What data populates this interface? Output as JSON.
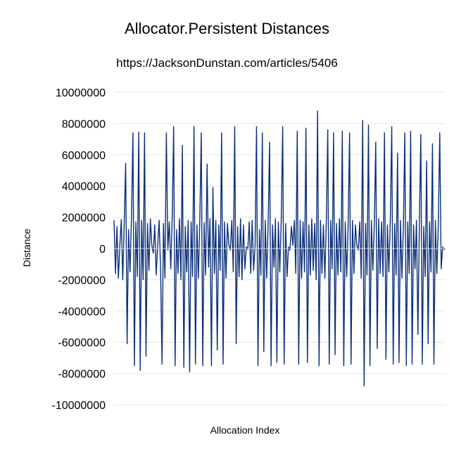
{
  "chart_data": {
    "type": "line",
    "title": "Allocator.Persistent Distances",
    "subtitle": "https://JacksonDunstan.com/articles/5406",
    "xlabel": "Allocation Index",
    "ylabel": "Distance",
    "ylim": [
      -10000000,
      10000000
    ],
    "yticks": [
      10000000,
      8000000,
      6000000,
      4000000,
      2000000,
      0,
      -2000000,
      -4000000,
      -6000000,
      -8000000,
      -10000000
    ],
    "grid": true,
    "legend": "none",
    "line_color": "#0b2f7a",
    "series": [
      {
        "values": [
          1800000,
          -1600000,
          1400000,
          -1900000,
          200000,
          1850000,
          -2000000,
          1600000,
          5450000,
          -6100000,
          1200000,
          -1500000,
          1900000,
          7400000,
          -7500000,
          1700000,
          -1800000,
          7450000,
          -7800000,
          1800000,
          -2000000,
          7400000,
          -6900000,
          1600000,
          -1400000,
          1900000,
          200000,
          -300000,
          1500000,
          -1700000,
          150000,
          1800000,
          -1200000,
          -7400000,
          1600000,
          -1900000,
          7400000,
          -100000,
          1700000,
          -1300000,
          1850000,
          7800000,
          -7500000,
          1200000,
          -1600000,
          1900000,
          -2000000,
          6600000,
          -7600000,
          1400000,
          -1500000,
          1800000,
          -7900000,
          1700000,
          -1800000,
          7800000,
          -7400000,
          1500000,
          -1900000,
          1800000,
          7400000,
          -7500000,
          1650000,
          -1700000,
          5400000,
          -1200000,
          1900000,
          -7500000,
          3900000,
          -1600000,
          1800000,
          -6500000,
          1500000,
          -1400000,
          7400000,
          -7400000,
          1700000,
          -1900000,
          1600000,
          200000,
          -100000,
          1800000,
          -1500000,
          7800000,
          -6100000,
          1400000,
          -1800000,
          1900000,
          -2000000,
          1500000,
          -1300000,
          100000,
          -50000,
          1700000,
          -1600000,
          1800000,
          -1400000,
          150000,
          7800000,
          -7500000,
          1200000,
          -1700000,
          7400000,
          -6600000,
          1800000,
          -1900000,
          1600000,
          6800000,
          -7500000,
          1500000,
          -1200000,
          1900000,
          -7300000,
          1700000,
          -1500000,
          1800000,
          7800000,
          -7400000,
          1600000,
          -1800000,
          100000,
          -100000,
          1400000,
          200000,
          1800000,
          -1600000,
          7500000,
          -7400000,
          1800000,
          -1900000,
          1700000,
          -1500000,
          7700000,
          -7300000,
          1500000,
          -1700000,
          1900000,
          -1400000,
          1600000,
          -2000000,
          8800000,
          -7500000,
          1800000,
          -1600000,
          1500000,
          -1900000,
          1700000,
          7600000,
          -7400000,
          1800000,
          -1300000,
          7400000,
          -6800000,
          1600000,
          -1700000,
          1900000,
          -1500000,
          7500000,
          -7500000,
          1700000,
          -1800000,
          1400000,
          7400000,
          -7400000,
          1800000,
          -1600000,
          1500000,
          200000,
          -100000,
          1700000,
          -1900000,
          8200000,
          -8800000,
          1600000,
          -1700000,
          7900000,
          -7500000,
          1800000,
          -1400000,
          1500000,
          6800000,
          -6400000,
          1900000,
          -1600000,
          1700000,
          -1800000,
          7400000,
          -7100000,
          1500000,
          -1500000,
          1800000,
          7800000,
          -7400000,
          1600000,
          -1700000,
          6100000,
          -7300000,
          1800000,
          -1900000,
          1400000,
          7400000,
          -7500000,
          1700000,
          -1600000,
          7500000,
          -7400000,
          1500000,
          -1300000,
          1800000,
          -5500000,
          1600000,
          7300000,
          -7400000,
          1400000,
          -1800000,
          5600000,
          -6100000,
          1700000,
          -1500000,
          6700000,
          -7400000,
          1800000,
          -1600000,
          1500000,
          7400000,
          -1300000,
          100000,
          -50000,
          0
        ]
      }
    ]
  }
}
